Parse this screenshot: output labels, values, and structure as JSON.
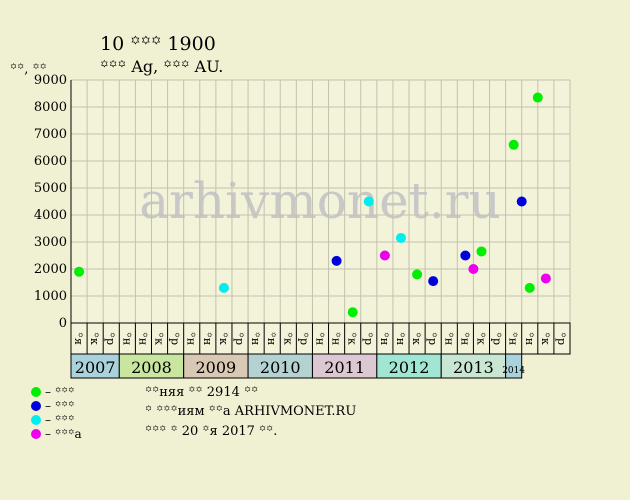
{
  "header": {
    "title": "10 ꙳꙳꙳ 1900",
    "subtitle": "꙳꙳꙳ Ag, ꙳꙳꙳ AU."
  },
  "chart_data": {
    "type": "scatter",
    "ylabel": "꙳꙳, ꙳꙳",
    "ylim": [
      0,
      9000
    ],
    "yticks": [
      0,
      1000,
      2000,
      3000,
      4000,
      5000,
      6000,
      7000,
      8000,
      9000
    ],
    "watermark": "arhivmonet.ru",
    "grid": true,
    "years": [
      {
        "label": "2007",
        "months": 3,
        "color": "#aad2dc"
      },
      {
        "label": "2008",
        "months": 4,
        "color": "#c8e6a0"
      },
      {
        "label": "2009",
        "months": 4,
        "color": "#d8c8b4"
      },
      {
        "label": "2010",
        "months": 4,
        "color": "#b4d2d2"
      },
      {
        "label": "2011",
        "months": 4,
        "color": "#dcc8d2"
      },
      {
        "label": "2012",
        "months": 4,
        "color": "#a0e6d2"
      },
      {
        "label": "2013",
        "months": 4,
        "color": "#c8e6d2"
      },
      {
        "label": "2014",
        "months": 1,
        "color": "#aad2dc",
        "small": true
      }
    ],
    "month_labels": [
      "꙳я",
      "꙳к",
      "꙳р",
      "꙳н",
      "꙳н",
      "꙳к",
      "꙳р",
      "꙳н",
      "꙳н",
      "꙳к",
      "꙳р",
      "꙳н",
      "꙳н",
      "꙳к",
      "꙳р",
      "꙳н",
      "꙳н",
      "꙳к",
      "꙳р",
      "꙳н",
      "꙳н",
      "꙳к",
      "꙳р",
      "꙳н",
      "꙳н",
      "꙳к",
      "꙳р",
      "꙳н",
      "꙳н",
      "꙳к",
      "꙳р"
    ],
    "series": [
      {
        "name": "꙳꙳꙳",
        "color": "#00ee00",
        "points": [
          [
            0,
            1900
          ],
          [
            17,
            400
          ],
          [
            21,
            1800
          ],
          [
            25,
            2650
          ],
          [
            27,
            6600
          ],
          [
            28,
            1300
          ],
          [
            28.5,
            8350
          ]
        ]
      },
      {
        "name": "꙳꙳꙳",
        "color": "#0000dd",
        "points": [
          [
            16,
            2300
          ],
          [
            22,
            1550
          ],
          [
            24,
            2500
          ],
          [
            27.5,
            4500
          ]
        ]
      },
      {
        "name": "꙳꙳꙳",
        "color": "#00eeee",
        "points": [
          [
            9,
            1300
          ],
          [
            18,
            4500
          ],
          [
            20,
            3150
          ]
        ]
      },
      {
        "name": "꙳꙳꙳а",
        "color": "#ee00ee",
        "points": [
          [
            19,
            2500
          ],
          [
            24.5,
            2000
          ],
          [
            29,
            1650
          ]
        ]
      }
    ]
  },
  "footer": {
    "line1": "꙳꙳няя ꙳꙳ 2914 ꙳꙳",
    "line2": "꙳ ꙳꙳꙳иям ꙳꙳а ARHIVMONET.RU",
    "line3": "꙳꙳꙳ ꙳ 20 ꙳я 2017 ꙳꙳."
  }
}
